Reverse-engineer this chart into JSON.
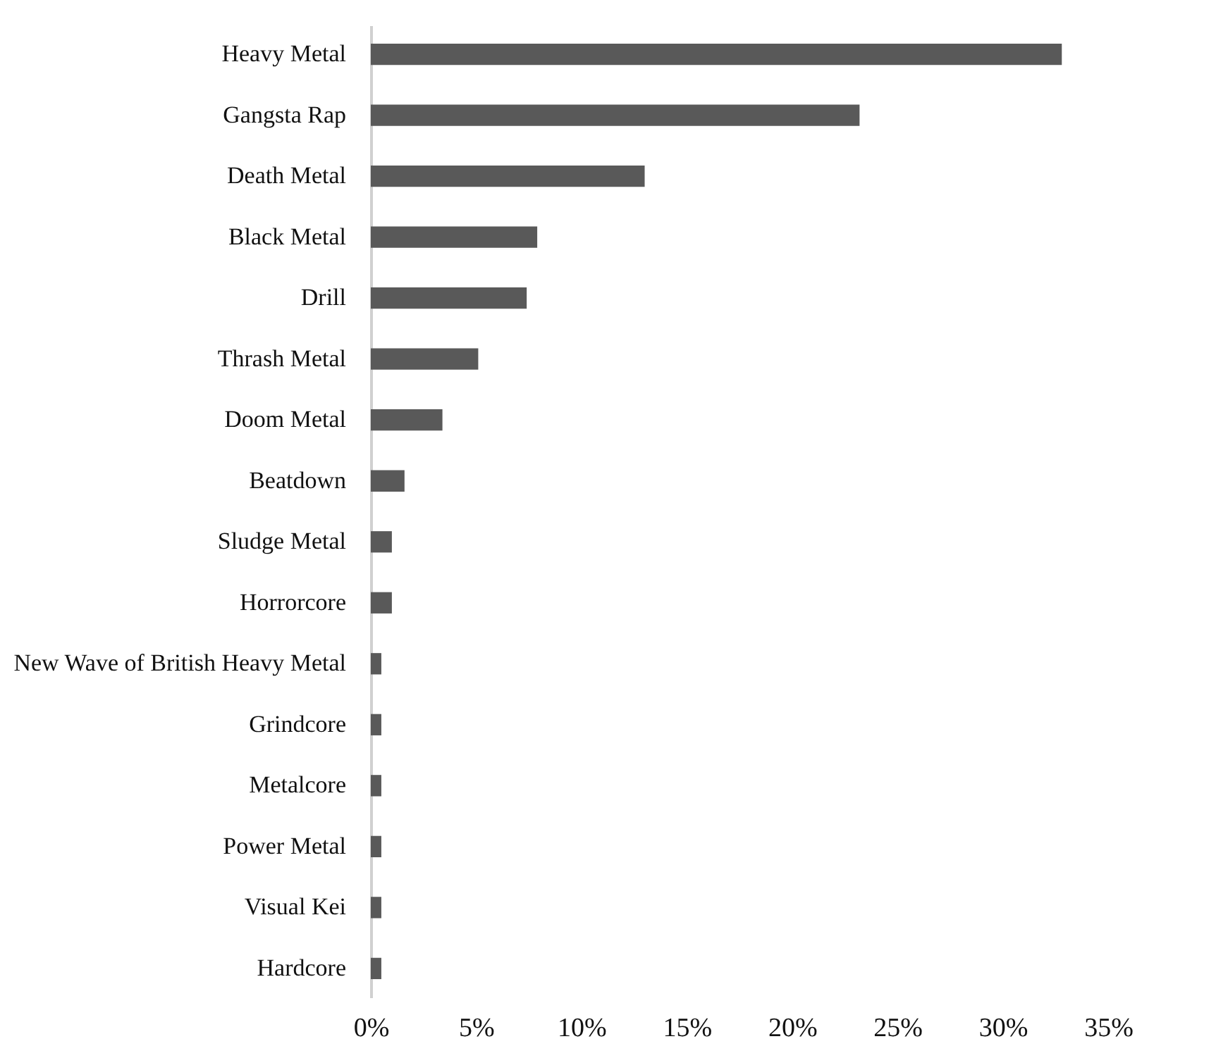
{
  "chart_data": {
    "type": "bar",
    "orientation": "horizontal",
    "categories": [
      "Heavy Metal",
      "Gangsta Rap",
      "Death Metal",
      "Black Metal",
      "Drill",
      "Thrash Metal",
      "Doom Metal",
      "Beatdown",
      "Sludge Metal",
      "Horrorcore",
      "New Wave of British Heavy Metal",
      "Grindcore",
      "Metalcore",
      "Power Metal",
      "Visual Kei",
      "Hardcore"
    ],
    "values": [
      32.8,
      23.2,
      13.0,
      7.9,
      7.4,
      5.1,
      3.4,
      1.6,
      1.0,
      1.0,
      0.5,
      0.5,
      0.5,
      0.5,
      0.5,
      0.5
    ],
    "color": "#595959",
    "xlim": [
      0,
      35
    ],
    "xticks": [
      {
        "value": 0,
        "label": "0%"
      },
      {
        "value": 5,
        "label": "5%"
      },
      {
        "value": 10,
        "label": "10%"
      },
      {
        "value": 15,
        "label": "15%"
      },
      {
        "value": 20,
        "label": "20%"
      },
      {
        "value": 25,
        "label": "25%"
      },
      {
        "value": 30,
        "label": "30%"
      },
      {
        "value": 35,
        "label": "35%"
      }
    ],
    "grid": false
  }
}
